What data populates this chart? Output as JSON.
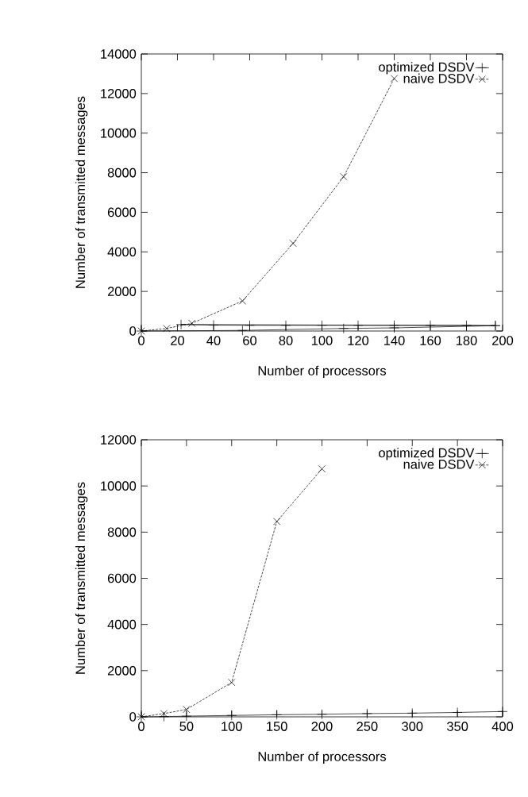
{
  "chart_data": [
    {
      "type": "line",
      "xlabel": "Number of processors",
      "ylabel": "Number of transmitted messages",
      "xlim": [
        0,
        200
      ],
      "ylim": [
        0,
        14000
      ],
      "xticks": [
        0,
        20,
        40,
        60,
        80,
        100,
        120,
        140,
        160,
        180,
        200
      ],
      "yticks": [
        0,
        2000,
        4000,
        6000,
        8000,
        10000,
        12000,
        14000
      ],
      "grid": false,
      "legend": "top right",
      "series": [
        {
          "name": "optimized DSDV",
          "color": "#000000",
          "marker": "plus",
          "line_style": "solid",
          "x": [
            0,
            56,
            112,
            140,
            196,
            22,
            40,
            60,
            80,
            100,
            120,
            140,
            160,
            180,
            196
          ],
          "values": [
            0,
            30,
            130,
            160,
            270,
            330,
            300,
            290,
            290,
            290,
            290,
            290,
            290,
            290,
            270
          ]
        },
        {
          "name": "naive DSDV",
          "color": "#000000",
          "marker": "cross",
          "line_style": "dashed",
          "x": [
            0,
            14,
            28,
            56,
            84,
            112,
            140
          ],
          "values": [
            0,
            130,
            390,
            1520,
            4430,
            7800,
            12760
          ]
        }
      ]
    },
    {
      "type": "line",
      "xlabel": "Number of processors",
      "ylabel": "Number of transmitted messages",
      "xlim": [
        0,
        400
      ],
      "ylim": [
        0,
        12000
      ],
      "xticks": [
        0,
        50,
        100,
        150,
        200,
        250,
        300,
        350,
        400
      ],
      "yticks": [
        0,
        2000,
        4000,
        6000,
        8000,
        10000,
        12000
      ],
      "grid": false,
      "legend": "top right",
      "series": [
        {
          "name": "optimized DSDV",
          "color": "#000000",
          "marker": "plus",
          "line_style": "solid",
          "x": [
            0,
            25,
            50,
            100,
            150,
            200,
            250,
            300,
            350,
            400
          ],
          "values": [
            0,
            10,
            30,
            60,
            90,
            110,
            140,
            160,
            190,
            230
          ]
        },
        {
          "name": "naive DSDV",
          "color": "#000000",
          "marker": "cross",
          "line_style": "dashed",
          "x": [
            0,
            25,
            50,
            100,
            150,
            200
          ],
          "values": [
            0,
            140,
            320,
            1490,
            8460,
            10740
          ]
        }
      ]
    }
  ]
}
